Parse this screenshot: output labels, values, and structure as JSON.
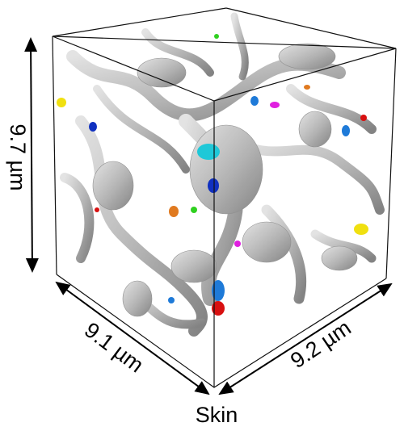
{
  "dimensions": {
    "height": "9.7 µm",
    "depth": "9.1 µm",
    "width": "9.2 µm"
  },
  "caption": "Skin"
}
